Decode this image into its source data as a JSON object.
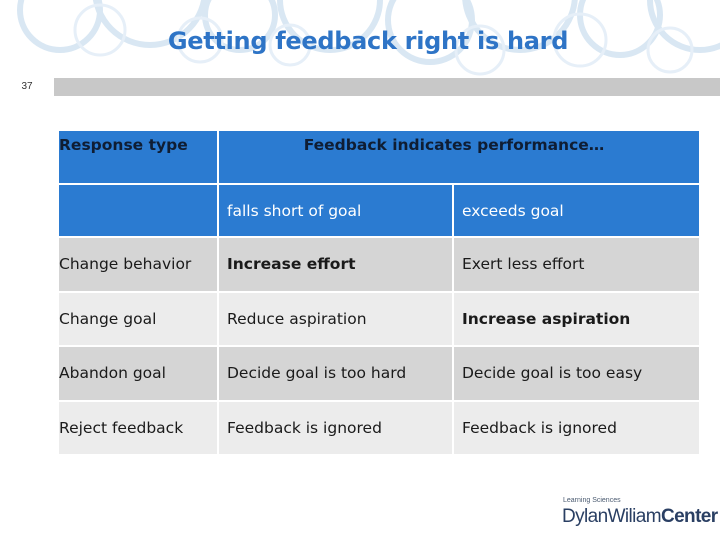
{
  "slide": {
    "title": "Getting feedback right is hard",
    "number": "37"
  },
  "table": {
    "header": {
      "col1": "Response type",
      "col2": "Feedback indicates performance…"
    },
    "subheader": {
      "col2": "falls short of goal",
      "col3": "exceeds goal"
    },
    "rows": [
      {
        "type": "Change behavior",
        "short": "Increase effort",
        "exceeds": "Exert less effort"
      },
      {
        "type": "Change goal",
        "short": "Reduce aspiration",
        "exceeds": "Increase aspiration"
      },
      {
        "type": "Abandon goal",
        "short": "Decide goal is too hard",
        "exceeds": "Decide goal is too easy"
      },
      {
        "type": "Reject feedback",
        "short": "Feedback is ignored",
        "exceeds": "Feedback is ignored"
      }
    ]
  },
  "logo": {
    "tagline": "Learning Sciences",
    "name_part1": "DylanWiliam",
    "name_part2": "Center"
  },
  "colors": {
    "accent": "#2e74c6",
    "header_fill": "#2b7bd1",
    "row_fill_dark": "#d5d5d5",
    "row_fill_light": "#ececec"
  }
}
